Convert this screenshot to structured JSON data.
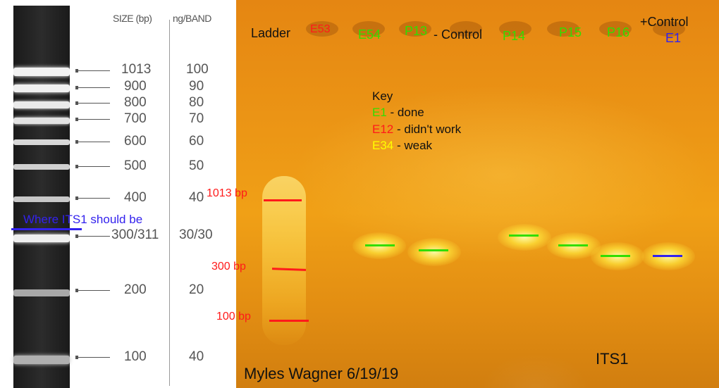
{
  "colors": {
    "gel_orange": "#eb9415",
    "done_green": "#33dd00",
    "fail_red": "#ff1a1a",
    "weak_yellow": "#ffff00",
    "control_blue": "#3322ee",
    "black_text": "#111111"
  },
  "ladder": {
    "size_header": "SIZE (bp)",
    "ng_header": "ng/BAND",
    "rows": [
      {
        "size": "1013",
        "ng": "100"
      },
      {
        "size": "900",
        "ng": "90"
      },
      {
        "size": "800",
        "ng": "80"
      },
      {
        "size": "700",
        "ng": "70"
      },
      {
        "size": "600",
        "ng": "60"
      },
      {
        "size": "500",
        "ng": "50"
      },
      {
        "size": "400",
        "ng": "40"
      },
      {
        "size": "300/311",
        "ng": "30/30"
      },
      {
        "size": "200",
        "ng": "20"
      },
      {
        "size": "100",
        "ng": "40"
      }
    ],
    "annotation": "Where ITS1 should be"
  },
  "gel": {
    "lane_labels": {
      "ladder": "Ladder",
      "e53": "E53",
      "e54": "E54",
      "p13": "P13",
      "neg_control": "- Control",
      "p14": "P14",
      "p15": "P15",
      "p16": "P16",
      "pos_control": "+Control",
      "e1": "E1"
    },
    "key": {
      "title": "Key",
      "done_code": "E1",
      "done_text": "- done",
      "fail_code": "E12",
      "fail_text": "- didn't work",
      "weak_code": "E34",
      "weak_text": "- weak"
    },
    "size_markers": {
      "bp1013": "1013 bp",
      "bp300": "300 bp",
      "bp100": "100 bp"
    },
    "author": "Myles Wagner 6/19/19",
    "gene": "ITS1"
  }
}
